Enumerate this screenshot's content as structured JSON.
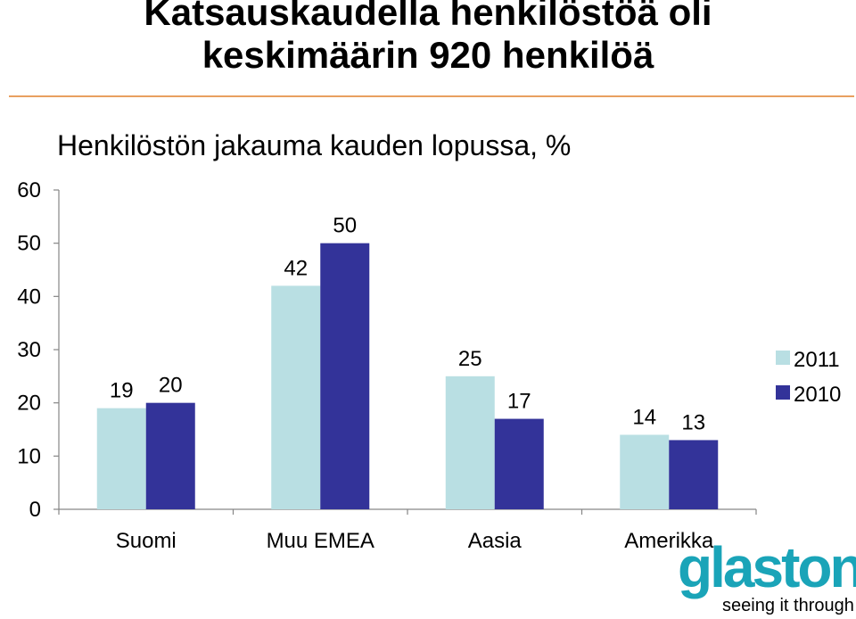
{
  "title_line1": "Katsauskaudella henkilöstöä oli",
  "title_line2": "keskimäärin 920 henkilöä",
  "subtitle": "Henkilöstön jakauma kauden lopussa, %",
  "logo": {
    "word": "glaston",
    "tagline": "seeing it through"
  },
  "colors": {
    "2011": "#b9dfe3",
    "2010": "#333399",
    "accent_rule": "#e8a060",
    "logo": "#1aa4b8"
  },
  "chart_data": {
    "type": "bar",
    "categories": [
      "Suomi",
      "Muu EMEA",
      "Aasia",
      "Amerikka"
    ],
    "series": [
      {
        "name": "2011",
        "values": [
          19,
          42,
          25,
          14
        ]
      },
      {
        "name": "2010",
        "values": [
          20,
          50,
          17,
          13
        ]
      }
    ],
    "ylim": [
      0,
      60
    ],
    "yticks": [
      "0",
      "10",
      "20",
      "30",
      "40",
      "50",
      "60"
    ],
    "legend": "right",
    "grid": false
  }
}
